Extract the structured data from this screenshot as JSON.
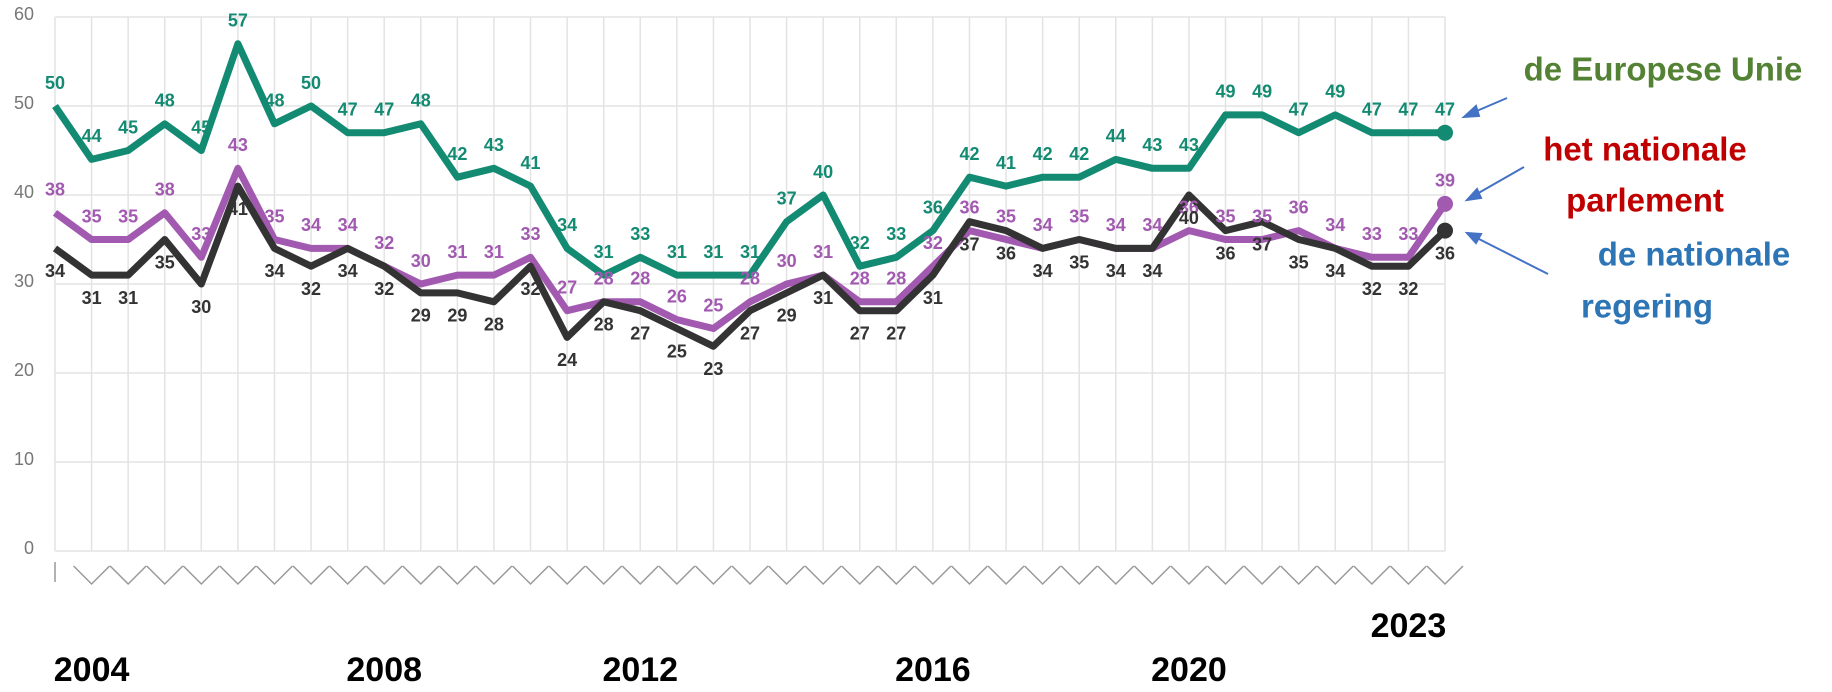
{
  "chart_data": {
    "type": "line",
    "categories": [
      null,
      "2004",
      null,
      null,
      null,
      null,
      null,
      null,
      null,
      "2008",
      null,
      null,
      null,
      null,
      null,
      null,
      "2012",
      null,
      null,
      null,
      null,
      null,
      null,
      null,
      "2016",
      null,
      null,
      null,
      null,
      null,
      null,
      "2020",
      null,
      null,
      null,
      null,
      null,
      "2023",
      null
    ],
    "series": [
      {
        "name": "de Europese Unie",
        "color": "#138a72",
        "values": [
          50,
          44,
          45,
          48,
          45,
          57,
          48,
          50,
          47,
          47,
          48,
          42,
          43,
          41,
          34,
          31,
          33,
          31,
          31,
          31,
          37,
          40,
          32,
          33,
          36,
          42,
          41,
          42,
          42,
          44,
          43,
          43,
          49,
          49,
          47,
          49,
          47,
          47,
          47
        ]
      },
      {
        "name": "het nationale parlement",
        "color": "#a259b0",
        "values": [
          38,
          35,
          35,
          38,
          33,
          43,
          35,
          34,
          34,
          32,
          30,
          31,
          31,
          33,
          27,
          28,
          28,
          26,
          25,
          28,
          30,
          31,
          28,
          28,
          32,
          36,
          35,
          34,
          35,
          34,
          34,
          36,
          35,
          35,
          36,
          34,
          33,
          33,
          39
        ]
      },
      {
        "name": "de nationale regering",
        "color": "#333333",
        "values": [
          34,
          31,
          31,
          35,
          30,
          41,
          34,
          32,
          34,
          32,
          29,
          29,
          28,
          32,
          24,
          28,
          27,
          25,
          23,
          27,
          29,
          31,
          27,
          27,
          31,
          37,
          36,
          34,
          35,
          34,
          34,
          40,
          36,
          37,
          35,
          34,
          32,
          32,
          36
        ]
      }
    ],
    "annotations": [
      {
        "lines": [
          "de Europese Unie"
        ],
        "color": "#548235"
      },
      {
        "lines": [
          "het nationale",
          "parlement"
        ],
        "color": "#c00000"
      },
      {
        "lines": [
          "de nationale",
          "regering"
        ],
        "color": "#2e75b6"
      }
    ],
    "ylim": [
      0,
      60
    ],
    "yticks": [
      0,
      10,
      20,
      30,
      40,
      50,
      60
    ],
    "grid": true
  }
}
